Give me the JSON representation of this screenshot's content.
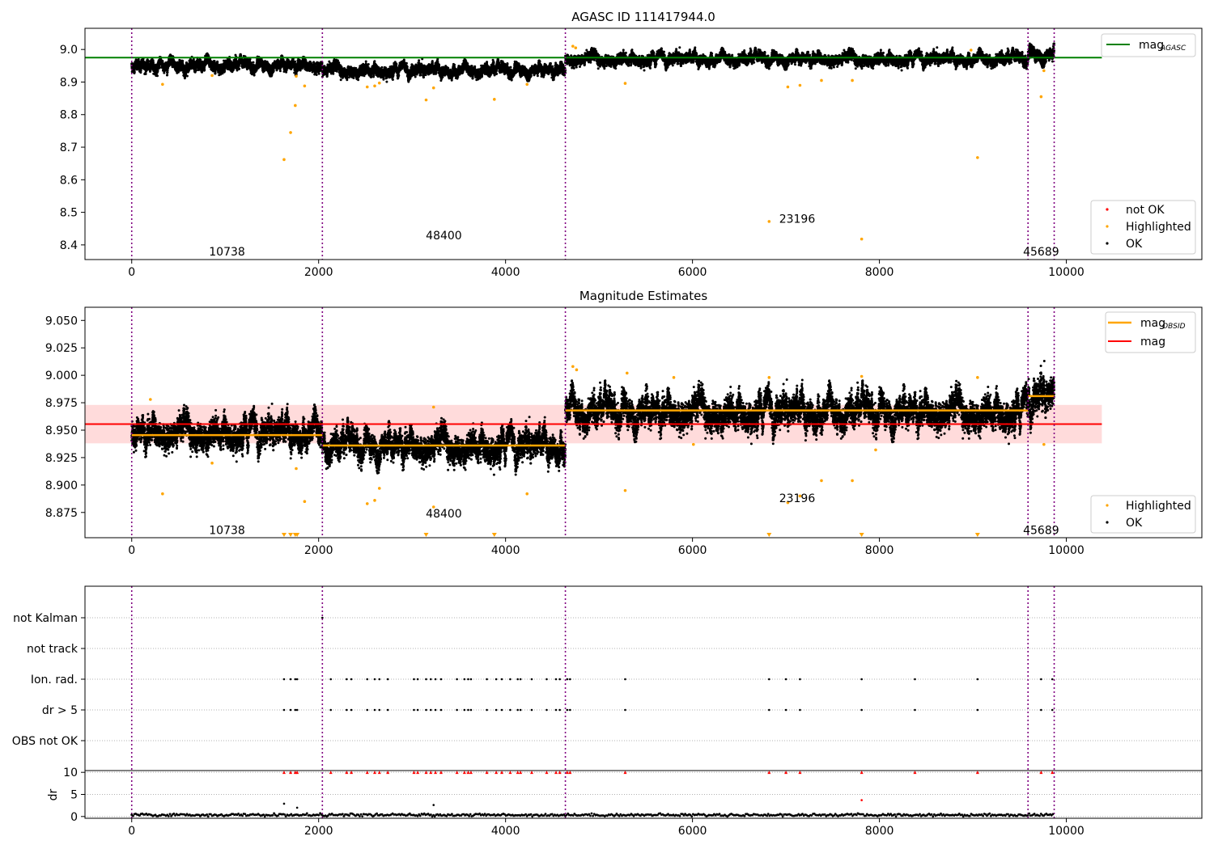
{
  "chart_data": [
    {
      "type": "scatter",
      "title": "AGASC ID 111417944.0",
      "xlim": [
        -500,
        11450
      ],
      "ylim": [
        8.355,
        9.065
      ],
      "x_ticks": [
        0,
        2000,
        4000,
        6000,
        8000,
        10000
      ],
      "y_ticks": [
        8.4,
        8.5,
        8.6,
        8.7,
        8.8,
        8.9,
        9.0
      ],
      "y_tick_labels": [
        "8.4",
        "8.5",
        "8.6",
        "8.7",
        "8.8",
        "8.9",
        "9.0"
      ],
      "obsid_boundaries": [
        0,
        2040,
        4640,
        9590,
        9870
      ],
      "obsid_labels": [
        {
          "text": "10738",
          "x": 1020,
          "y": 8.38
        },
        {
          "text": "48400",
          "x": 3340,
          "y": 8.43
        },
        {
          "text": "23196",
          "x": 7120,
          "y": 8.48
        },
        {
          "text": "45689",
          "x": 9730,
          "y": 8.38
        }
      ],
      "mag_agasc": {
        "value": 8.975,
        "x_range": [
          -500,
          10380
        ],
        "color": "#008000"
      },
      "ok_segments": [
        {
          "x": [
            0,
            2040
          ],
          "mean": 8.95,
          "spread": 0.012
        },
        {
          "x": [
            2040,
            4640
          ],
          "mean": 8.935,
          "spread": 0.012
        },
        {
          "x": [
            4640,
            9590
          ],
          "mean": 8.97,
          "spread": 0.012
        },
        {
          "x": [
            9590,
            9870
          ],
          "mean": 8.982,
          "spread": 0.014
        }
      ],
      "highlighted_points": [
        [
          1630,
          8.662
        ],
        [
          1700,
          8.745
        ],
        [
          1750,
          8.828
        ],
        [
          330,
          8.893
        ],
        [
          1850,
          8.888
        ],
        [
          860,
          8.92
        ],
        [
          1760,
          8.918
        ],
        [
          3150,
          8.845
        ],
        [
          3230,
          8.882
        ],
        [
          3880,
          8.847
        ],
        [
          4230,
          8.893
        ],
        [
          2520,
          8.885
        ],
        [
          2600,
          8.888
        ],
        [
          2650,
          8.897
        ],
        [
          5280,
          8.896
        ],
        [
          6820,
          8.472
        ],
        [
          7020,
          8.885
        ],
        [
          7150,
          8.89
        ],
        [
          7380,
          8.905
        ],
        [
          7710,
          8.905
        ],
        [
          7810,
          8.418
        ],
        [
          9050,
          8.668
        ],
        [
          9730,
          8.855
        ],
        [
          9760,
          8.935
        ],
        [
          4720,
          9.01
        ],
        [
          4750,
          9.005
        ],
        [
          8980,
          8.998
        ]
      ],
      "legend_top": [
        {
          "label": "mag",
          "subscript": "AGASC",
          "color": "#008000"
        }
      ],
      "legend_bottom": [
        {
          "label": "not OK",
          "color": "#ff0000"
        },
        {
          "label": "Highlighted",
          "color": "#ffa500"
        },
        {
          "label": "OK",
          "color": "#000000"
        }
      ]
    },
    {
      "type": "scatter",
      "title": "Magnitude Estimates",
      "xlim": [
        -500,
        11450
      ],
      "ylim": [
        8.852,
        9.062
      ],
      "x_ticks": [
        0,
        2000,
        4000,
        6000,
        8000,
        10000
      ],
      "y_ticks": [
        8.875,
        8.9,
        8.925,
        8.95,
        8.975,
        9.0,
        9.025,
        9.05
      ],
      "y_tick_labels": [
        "8.875",
        "8.900",
        "8.925",
        "8.950",
        "8.975",
        "9.000",
        "9.025",
        "9.050"
      ],
      "obsid_boundaries": [
        0,
        2040,
        4640,
        9590,
        9870
      ],
      "obsid_labels": [
        {
          "text": "10738",
          "x": 1020,
          "y": 8.859
        },
        {
          "text": "48400",
          "x": 3340,
          "y": 8.874
        },
        {
          "text": "23196",
          "x": 7120,
          "y": 8.888
        },
        {
          "text": "45689",
          "x": 9730,
          "y": 8.859
        }
      ],
      "mag": {
        "value": 8.9555,
        "band": [
          8.938,
          8.973
        ],
        "x_range": [
          -500,
          10380
        ],
        "color": "#ff0000",
        "band_color": "#ffb0b0"
      },
      "mag_obsid": [
        {
          "x": [
            0,
            2040
          ],
          "value": 8.9455
        },
        {
          "x": [
            2040,
            4640
          ],
          "value": 8.936
        },
        {
          "x": [
            4640,
            9590
          ],
          "value": 8.968
        },
        {
          "x": [
            9590,
            9870
          ],
          "value": 8.981
        }
      ],
      "ok_segments": [
        {
          "x": [
            0,
            2040
          ],
          "mean": 8.947,
          "spread": 0.009
        },
        {
          "x": [
            2040,
            4640
          ],
          "mean": 8.935,
          "spread": 0.009
        },
        {
          "x": [
            4640,
            9590
          ],
          "mean": 8.966,
          "spread": 0.01
        },
        {
          "x": [
            9590,
            9870
          ],
          "mean": 8.98,
          "spread": 0.011
        }
      ],
      "highlighted_points": [
        [
          330,
          8.892
        ],
        [
          860,
          8.92
        ],
        [
          1760,
          8.915
        ],
        [
          1850,
          8.885
        ],
        [
          200,
          8.978
        ],
        [
          2520,
          8.883
        ],
        [
          2600,
          8.886
        ],
        [
          2650,
          8.897
        ],
        [
          3230,
          8.88
        ],
        [
          3230,
          8.971
        ],
        [
          4230,
          8.892
        ],
        [
          5280,
          8.895
        ],
        [
          6820,
          8.998
        ],
        [
          7020,
          8.884
        ],
        [
          7150,
          8.89
        ],
        [
          7380,
          8.904
        ],
        [
          7710,
          8.904
        ],
        [
          7810,
          8.999
        ],
        [
          9050,
          8.998
        ],
        [
          9760,
          8.937
        ],
        [
          4720,
          9.008
        ],
        [
          4760,
          9.005
        ],
        [
          5300,
          9.002
        ],
        [
          5800,
          8.998
        ],
        [
          6010,
          8.937
        ],
        [
          7960,
          8.932
        ]
      ],
      "lower_limit_markers": [
        1630,
        1700,
        1750,
        1770,
        3150,
        3880,
        6820,
        7810,
        9050
      ],
      "legend_top": [
        {
          "label": "mag",
          "subscript": "OBSID",
          "color": "#ffa500"
        },
        {
          "label": "mag",
          "subscript": "",
          "color": "#ff0000"
        }
      ],
      "legend_bottom": [
        {
          "label": "Highlighted",
          "color": "#ffa500"
        },
        {
          "label": "OK",
          "color": "#000000"
        }
      ]
    },
    {
      "type": "scatter",
      "title": "",
      "xlim": [
        -500,
        11450
      ],
      "obsid_boundaries": [
        0,
        2040,
        4640,
        9590,
        9870
      ],
      "flag_categories": [
        "not Kalman",
        "not track",
        "Ion. rad.",
        "dr > 5",
        "OBS not OK"
      ],
      "flag_x": [
        1630,
        1700,
        1750,
        1770,
        2130,
        2300,
        2350,
        2520,
        2600,
        2650,
        2740,
        3020,
        3060,
        3150,
        3200,
        3250,
        3310,
        3480,
        3560,
        3600,
        3630,
        3800,
        3900,
        3960,
        4050,
        4130,
        4160,
        4280,
        4440,
        4540,
        4580,
        4660,
        4690,
        5280,
        6820,
        7000,
        7150,
        7810,
        8380,
        9050,
        9730,
        9850
      ],
      "not_kalman_x": [
        2040
      ],
      "dr_ylim": [
        -0.4,
        10.4
      ],
      "dr_yticks": [
        0,
        5,
        10
      ],
      "dr_ylabel": "dr",
      "dr_baseline": 0.35,
      "dr_outliers": [
        [
          1630,
          2.9
        ],
        [
          3230,
          2.6
        ],
        [
          7810,
          3.7
        ],
        [
          1770,
          2.0
        ]
      ]
    }
  ]
}
